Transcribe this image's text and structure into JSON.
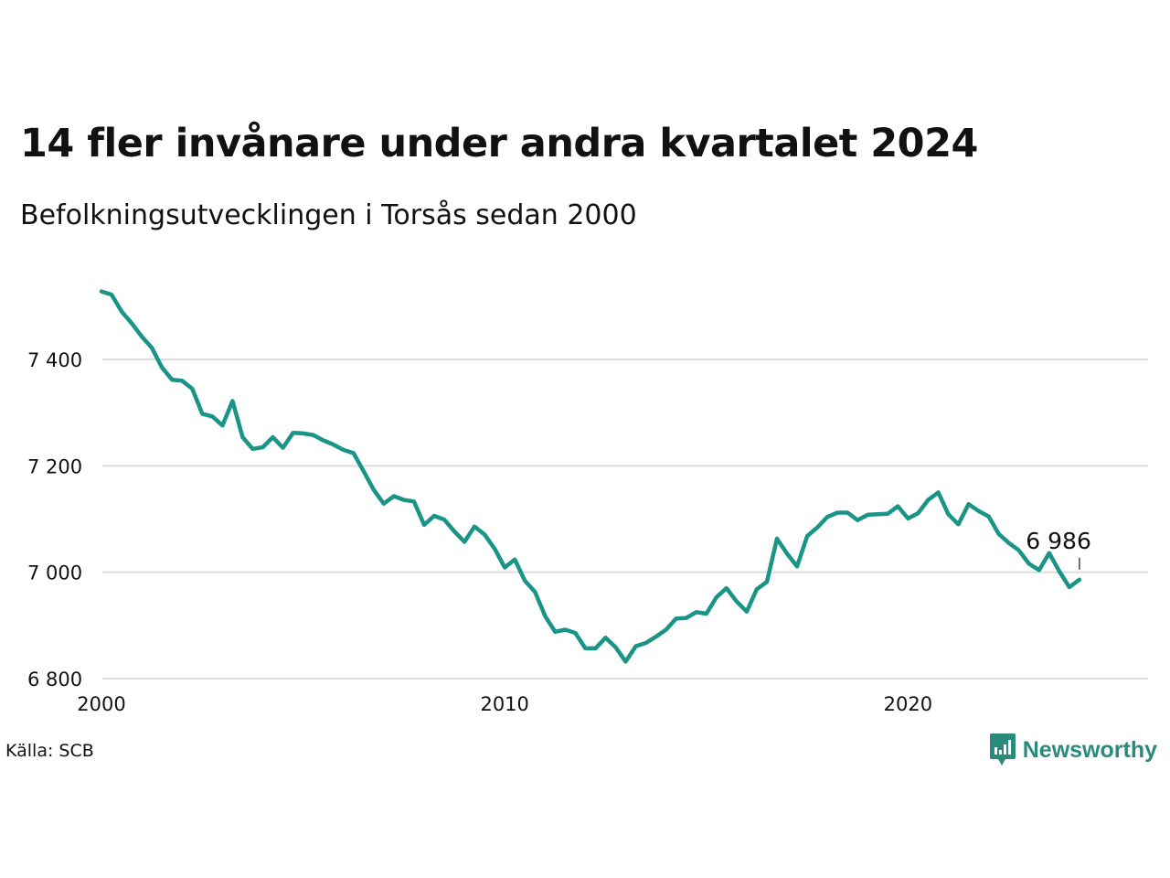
{
  "title": "14 fler invånare under andra kvartalet 2024",
  "subtitle": "Befolkningsutvecklingen i Torsås sedan 2000",
  "source": "Källa: SCB",
  "brand": "Newsworthy",
  "colors": {
    "line": "#1a9486",
    "grid": "#dcdcdc",
    "text": "#111111",
    "brand": "#2a8a7c"
  },
  "chart_data": {
    "type": "line",
    "x_unit": "quarter",
    "x_start": "2000 Q1",
    "x_ticks": [
      2000,
      2010,
      2020
    ],
    "x_tick_labels": [
      "2000",
      "2010",
      "2020"
    ],
    "y_ticks": [
      6800,
      7000,
      7200,
      7400
    ],
    "y_tick_labels": [
      "6 800",
      "7 000",
      "7 200",
      "7 400"
    ],
    "grid": true,
    "xlim": [
      2000,
      2025.25
    ],
    "ylim": [
      6800,
      7560
    ],
    "last_value_label": "6 986",
    "series": [
      {
        "values": [
          7528,
          7522,
          7490,
          7468,
          7443,
          7422,
          7385,
          7362,
          7360,
          7345,
          7298,
          7293,
          7276,
          7322,
          7254,
          7232,
          7235,
          7254,
          7234,
          7262,
          7261,
          7258,
          7248,
          7240,
          7230,
          7224,
          7190,
          7155,
          7129,
          7143,
          7136,
          7133,
          7089,
          7106,
          7099,
          7077,
          7057,
          7086,
          7071,
          7044,
          7009,
          7024,
          6984,
          6963,
          6918,
          6888,
          6892,
          6886,
          6857,
          6857,
          6877,
          6859,
          6832,
          6861,
          6867,
          6879,
          6892,
          6913,
          6914,
          6925,
          6922,
          6953,
          6970,
          6945,
          6926,
          6968,
          6982,
          7063,
          7035,
          7011,
          7068,
          7084,
          7104,
          7112,
          7112,
          7098,
          7108,
          7109,
          7110,
          7124,
          7101,
          7111,
          7136,
          7150,
          7109,
          7090,
          7128,
          7115,
          7105,
          7072,
          7055,
          7041,
          7016,
          7004,
          7036,
          7002,
          6972,
          6986
        ]
      }
    ]
  }
}
